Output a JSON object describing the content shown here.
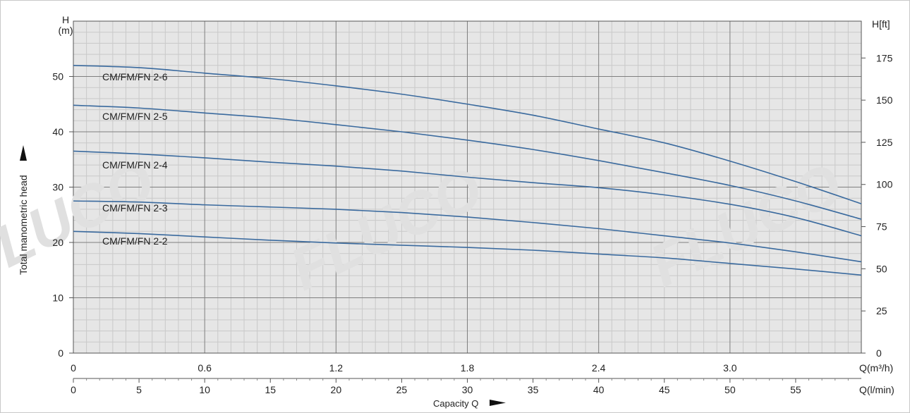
{
  "chart_data": {
    "type": "line",
    "y_label": "Total manometric head",
    "x_label": "Capacity Q",
    "y_left_label_top": "H",
    "y_left_unit": "(m)",
    "y_right_label": "H[ft]",
    "x_top_unit": "Q(m³/h)",
    "x_bottom_unit": "Q(l/min)",
    "watermark": "FLUCO",
    "grid": true,
    "ylim": [
      0,
      60
    ],
    "xlim_lmin": [
      0,
      60
    ],
    "y_ticks": [
      0,
      10,
      20,
      30,
      40,
      50
    ],
    "y_right_ticks": [
      0,
      25,
      50,
      75,
      100,
      125,
      150,
      175
    ],
    "x_top_ticks": [
      "0",
      "0.6",
      "1.2",
      "1.8",
      "2.4",
      "3.0"
    ],
    "x_top_tick_values_lmin": [
      0,
      10,
      20,
      30,
      40,
      50
    ],
    "x_bottom_ticks": [
      0,
      5,
      10,
      15,
      20,
      25,
      30,
      35,
      40,
      45,
      50,
      55
    ],
    "series": [
      {
        "name": "CM/FM/FN 2-6",
        "x": [
          0,
          5,
          10,
          15,
          20,
          25,
          30,
          35,
          40,
          45,
          50,
          55,
          60
        ],
        "y": [
          52.0,
          51.6,
          50.6,
          49.6,
          48.3,
          46.8,
          45.0,
          43.0,
          40.5,
          38.0,
          34.7,
          31.0,
          27.0
        ]
      },
      {
        "name": "CM/FM/FN 2-5",
        "x": [
          0,
          5,
          10,
          15,
          20,
          25,
          30,
          35,
          40,
          45,
          50,
          55,
          60
        ],
        "y": [
          44.8,
          44.3,
          43.4,
          42.5,
          41.3,
          40.0,
          38.5,
          36.8,
          34.8,
          32.6,
          30.3,
          27.5,
          24.2
        ]
      },
      {
        "name": "CM/FM/FN 2-4",
        "x": [
          0,
          5,
          10,
          15,
          20,
          25,
          30,
          35,
          40,
          45,
          50,
          55,
          60
        ],
        "y": [
          36.5,
          36.0,
          35.3,
          34.5,
          33.8,
          32.9,
          31.8,
          30.8,
          29.9,
          28.6,
          26.9,
          24.5,
          21.2
        ]
      },
      {
        "name": "CM/FM/FN 2-3",
        "x": [
          0,
          5,
          10,
          15,
          20,
          25,
          30,
          35,
          40,
          45,
          50,
          55,
          60
        ],
        "y": [
          27.5,
          27.3,
          26.8,
          26.4,
          26.0,
          25.4,
          24.6,
          23.6,
          22.5,
          21.2,
          19.9,
          18.3,
          16.5
        ]
      },
      {
        "name": "CM/FM/FN 2-2",
        "x": [
          0,
          5,
          10,
          15,
          20,
          25,
          30,
          35,
          40,
          45,
          50,
          55,
          60
        ],
        "y": [
          22.0,
          21.6,
          21.0,
          20.4,
          19.9,
          19.5,
          19.1,
          18.6,
          17.9,
          17.2,
          16.2,
          15.2,
          14.1
        ]
      }
    ],
    "colors": {
      "curve": "#3a6a9e",
      "plot_bg": "#e6e6e6",
      "minor_grid": "#c9c9c9",
      "major_grid": "#7f7f7f",
      "watermark": "#e0e0e0"
    }
  }
}
